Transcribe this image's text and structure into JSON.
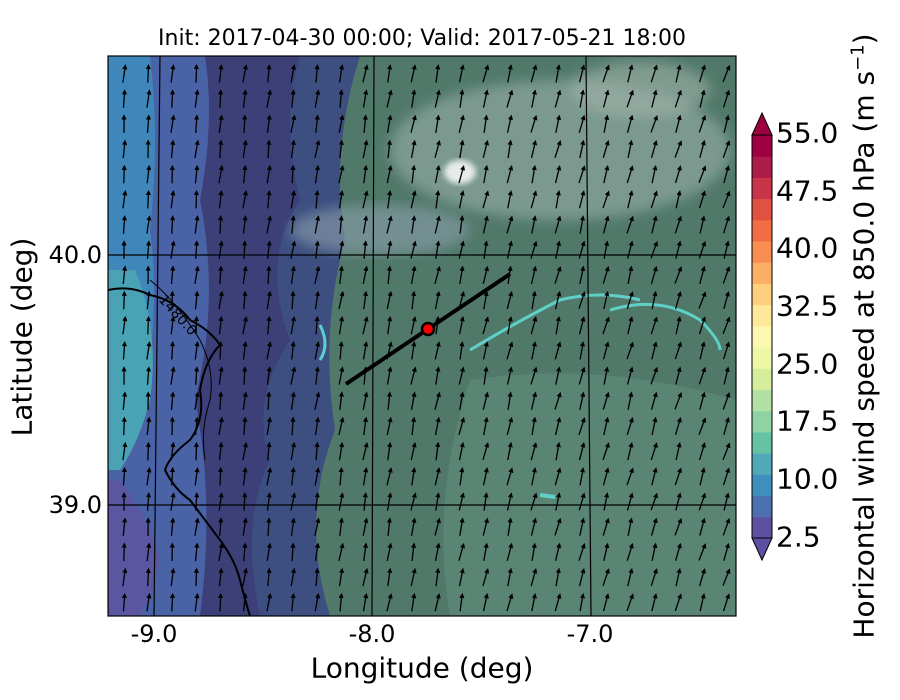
{
  "title": "Init: 2017-04-30 00:00; Valid: 2017-05-21 18:00",
  "xaxis": {
    "label": "Longitude (deg)",
    "ticks": [
      "-9.0",
      "-8.0",
      "-7.0"
    ]
  },
  "yaxis": {
    "label": "Latitude (deg)",
    "ticks": [
      "40.0",
      "39.0"
    ]
  },
  "contour_label": "1480.0",
  "colorbar": {
    "label": "Horizontal wind speed at 850.0 hPa (m s",
    "label_sup": "−1",
    "label_end": ")",
    "ticks": [
      "55.0",
      "47.5",
      "40.0",
      "32.5",
      "25.0",
      "17.5",
      "10.0",
      "2.5"
    ],
    "colors": [
      "#5e4fa2",
      "#4c6fb0",
      "#3f8fbd",
      "#4fa9b8",
      "#66c2a5",
      "#8fd3a4",
      "#b3e0a5",
      "#d6ee9b",
      "#eef7a6",
      "#fbf8b0",
      "#fee89a",
      "#fed07e",
      "#fdb063",
      "#f98e52",
      "#f26c44",
      "#e0523f",
      "#c93548",
      "#ad1b4a",
      "#9e0142"
    ],
    "extend_low_color": "#5e4fa2",
    "extend_high_color": "#9e0142"
  },
  "map_colors": {
    "west_band": "#4469a8",
    "coast_band": "#3d93b8",
    "interior_dark": "#3a4a86",
    "land_mid": "#3f5e78",
    "land_green": "#4f7a6c",
    "land_light": "#6b9080",
    "highland": "#a3b5b0",
    "snow": "#e4e8e8",
    "cyan_rivers": "#5fd0c8"
  },
  "cross_section_marker_color": "#ff0000"
}
